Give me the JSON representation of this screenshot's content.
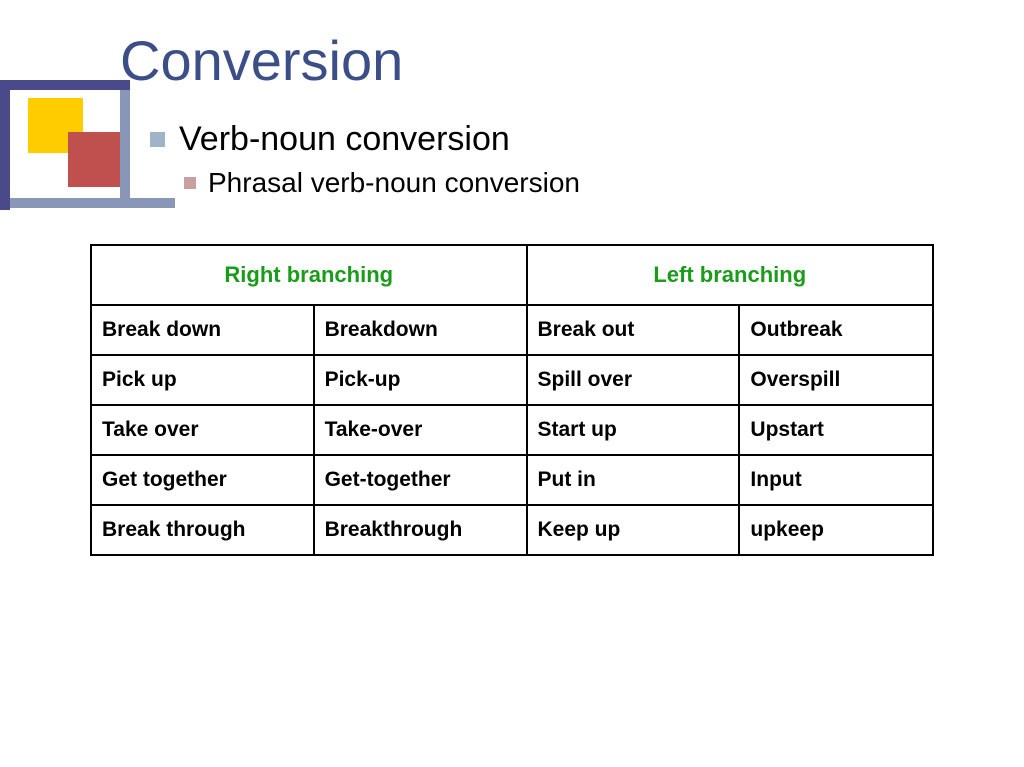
{
  "title": "Conversion",
  "bullets": {
    "level1": "Verb-noun conversion",
    "level2": "Phrasal verb-noun conversion"
  },
  "table": {
    "headers": {
      "left": "Right branching",
      "right": "Left branching"
    },
    "header_color": "#1a9b1a",
    "rows": [
      {
        "a": "Break down",
        "b": "Breakdown",
        "c": "Break out",
        "d": "Outbreak"
      },
      {
        "a": "Pick up",
        "b": "Pick-up",
        "c": "Spill over",
        "d": "Overspill"
      },
      {
        "a": "Take over",
        "b": "Take-over",
        "c": "Start up",
        "d": "Upstart"
      },
      {
        "a": "Get together",
        "b": "Get-together",
        "c": "Put in",
        "d": "Input"
      },
      {
        "a": "Break through",
        "b": "Breakthrough",
        "c": "Keep up",
        "d": "upkeep"
      }
    ]
  },
  "colors": {
    "title": "#3b4e87",
    "bullet1_square": "#9fb4c9",
    "bullet2_square": "#c9a0a0",
    "deco_dark": "#4a4a8a",
    "deco_mid": "#8896b8",
    "deco_yellow": "#ffcc00",
    "deco_red": "#c0504d",
    "border": "#000000",
    "background": "#ffffff"
  },
  "fonts": {
    "title_size_pt": 42,
    "bullet1_size_pt": 26,
    "bullet2_size_pt": 21,
    "header_size_pt": 17,
    "cell_size_pt": 16
  }
}
